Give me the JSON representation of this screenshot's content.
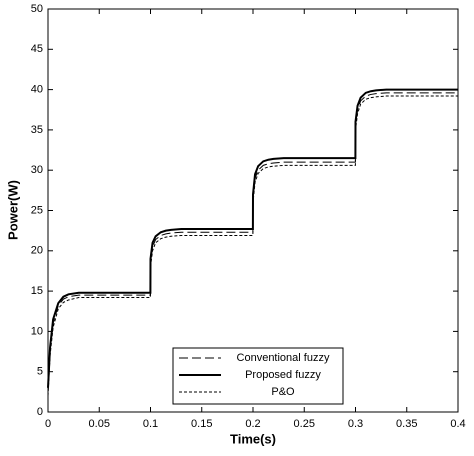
{
  "chart_data": {
    "type": "line",
    "xlabel": "Time(s)",
    "ylabel": "Power(W)",
    "x": [
      0,
      0.002,
      0.005,
      0.01,
      0.015,
      0.02,
      0.03,
      0.05,
      0.0999,
      0.1,
      0.102,
      0.105,
      0.11,
      0.115,
      0.12,
      0.13,
      0.15,
      0.1999,
      0.2,
      0.202,
      0.205,
      0.21,
      0.215,
      0.22,
      0.23,
      0.25,
      0.2999,
      0.3,
      0.302,
      0.305,
      0.31,
      0.315,
      0.32,
      0.33,
      0.35,
      0.4
    ],
    "series": [
      {
        "name": "Conventional fuzzy",
        "color": "#000000",
        "linestyle": "dashed",
        "linewidth": 1,
        "values": [
          2.5,
          7.5,
          11,
          13.2,
          14,
          14.3,
          14.5,
          14.5,
          14.5,
          18.5,
          20.5,
          21.4,
          21.9,
          22.1,
          22.2,
          22.3,
          22.3,
          22.3,
          26.5,
          29,
          30,
          30.6,
          30.8,
          30.9,
          31,
          31,
          31,
          35.5,
          37.5,
          38.6,
          39.2,
          39.4,
          39.5,
          39.6,
          39.6,
          39.6
        ]
      },
      {
        "name": "Proposed fuzzy",
        "color": "#000000",
        "linestyle": "solid",
        "linewidth": 2,
        "values": [
          3,
          8,
          11.5,
          13.5,
          14.3,
          14.6,
          14.8,
          14.8,
          14.8,
          19,
          21,
          21.8,
          22.3,
          22.5,
          22.6,
          22.7,
          22.7,
          22.7,
          27,
          29.5,
          30.5,
          31.1,
          31.3,
          31.4,
          31.5,
          31.5,
          31.5,
          36,
          38,
          39,
          39.6,
          39.8,
          39.9,
          40,
          40,
          40
        ]
      },
      {
        "name": "P&O",
        "color": "#000000",
        "linestyle": "dotted",
        "linewidth": 1,
        "values": [
          2,
          7,
          10.5,
          12.8,
          13.6,
          13.9,
          14.2,
          14.2,
          14.2,
          18,
          20,
          21,
          21.5,
          21.7,
          21.8,
          21.9,
          21.9,
          21.9,
          26,
          28.5,
          29.6,
          30.2,
          30.4,
          30.5,
          30.6,
          30.6,
          30.6,
          35,
          37,
          38.2,
          38.8,
          39,
          39.1,
          39.2,
          39.2,
          39.2
        ]
      }
    ],
    "xlim": [
      0,
      0.4
    ],
    "xticks": [
      0,
      0.05,
      0.1,
      0.15,
      0.2,
      0.25,
      0.3,
      0.35,
      0.4
    ],
    "ylim": [
      0,
      50
    ],
    "yticks": [
      0,
      5,
      10,
      15,
      20,
      25,
      30,
      35,
      40,
      45,
      50
    ],
    "grid": false,
    "legend": "lower center"
  }
}
